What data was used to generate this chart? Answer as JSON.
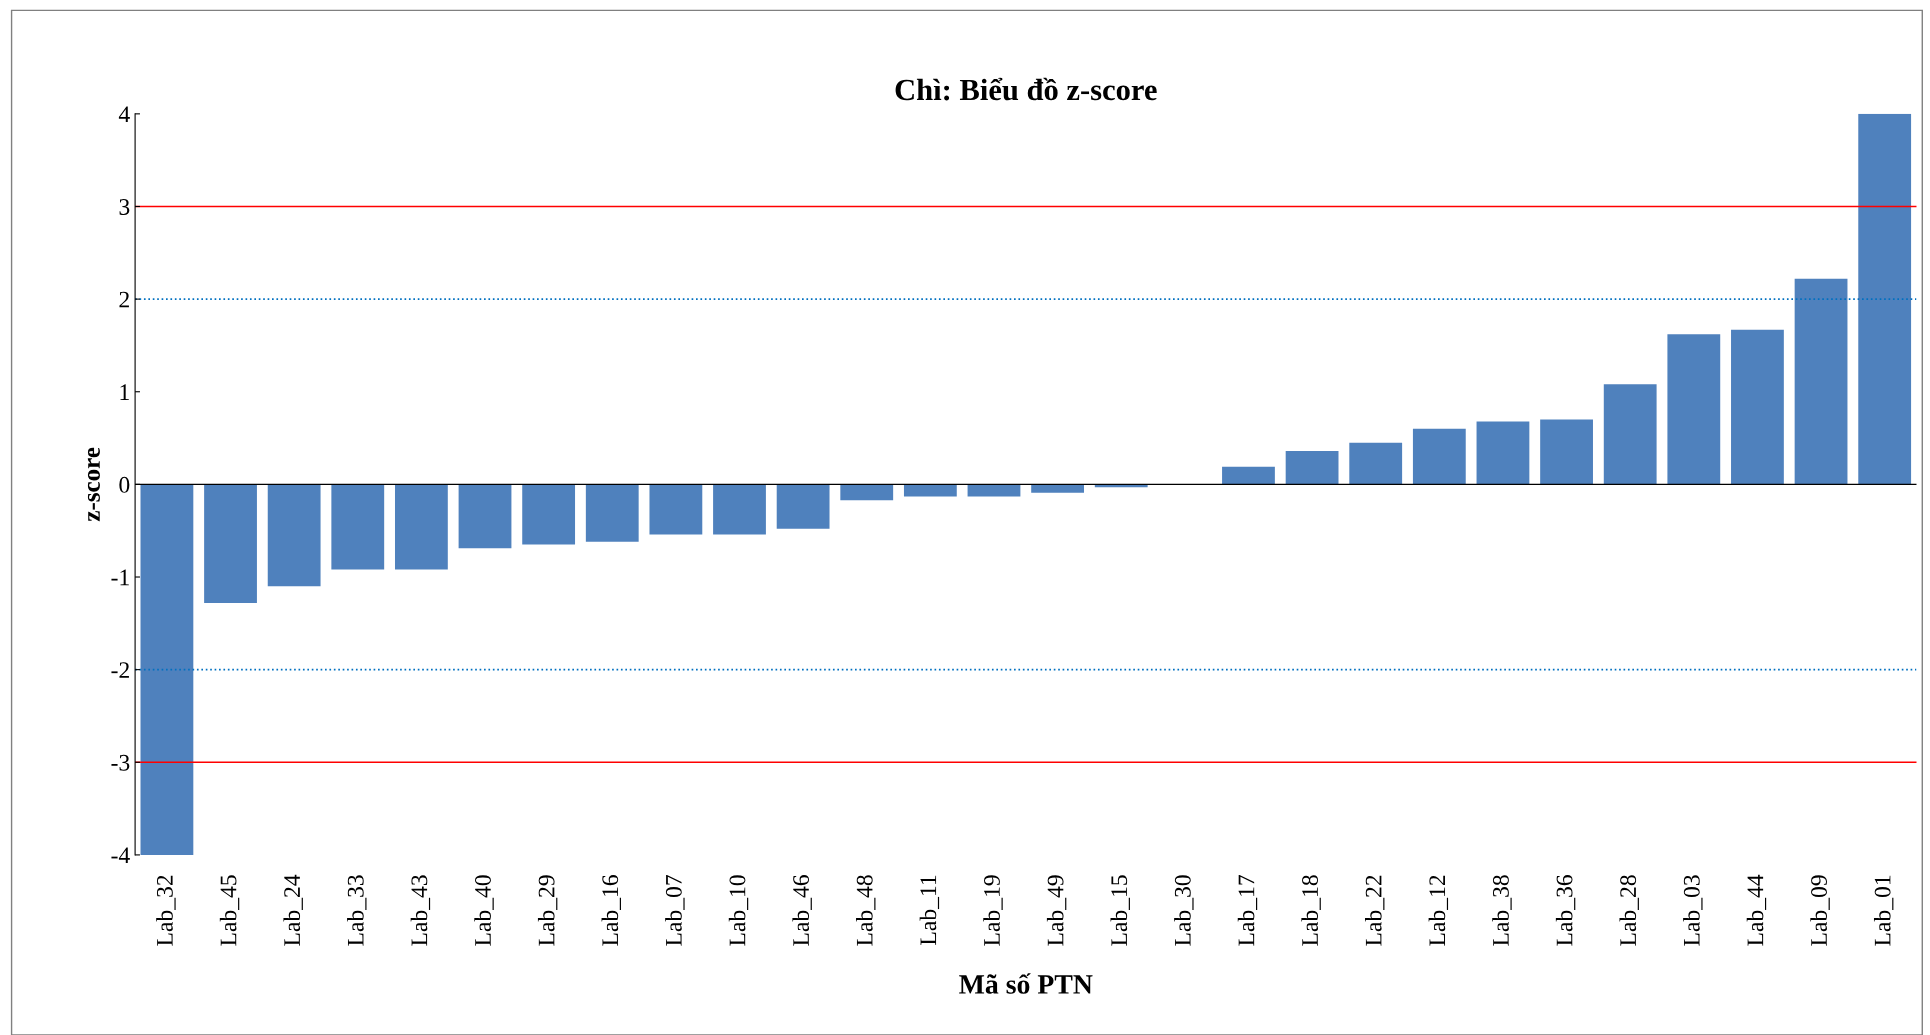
{
  "chart_data": {
    "type": "bar",
    "title": "Chì: Biểu đồ z-score",
    "xlabel": "Mã số PTN",
    "ylabel": "z-score",
    "categories": [
      "Lab_32",
      "Lab_45",
      "Lab_24",
      "Lab_33",
      "Lab_43",
      "Lab_40",
      "Lab_29",
      "Lab_16",
      "Lab_07",
      "Lab_10",
      "Lab_46",
      "Lab_48",
      "Lab_11",
      "Lab_19",
      "Lab_49",
      "Lab_15",
      "Lab_30",
      "Lab_17",
      "Lab_18",
      "Lab_22",
      "Lab_12",
      "Lab_38",
      "Lab_36",
      "Lab_28",
      "Lab_03",
      "Lab_44",
      "Lab_09",
      "Lab_01"
    ],
    "values": [
      -4.0,
      -1.28,
      -1.1,
      -0.92,
      -0.92,
      -0.69,
      -0.65,
      -0.62,
      -0.54,
      -0.54,
      -0.48,
      -0.17,
      -0.13,
      -0.13,
      -0.09,
      -0.03,
      0,
      0.19,
      0.36,
      0.45,
      0.6,
      0.68,
      0.7,
      1.08,
      1.62,
      1.67,
      2.22,
      4.0
    ],
    "color": "#4f81bd",
    "ylim": [
      -4,
      4
    ],
    "yticks": [
      -4,
      -3,
      -2,
      -1,
      0,
      1,
      2,
      3,
      4
    ],
    "grid": false,
    "legend": false,
    "ref_lines": [
      {
        "axis": "y",
        "value": 3,
        "color": "#ff0000",
        "line_style": "solid"
      },
      {
        "axis": "y",
        "value": -3,
        "color": "#ff0000",
        "line_style": "solid"
      },
      {
        "axis": "y",
        "value": 2,
        "color": "#0070c0",
        "line_style": "dotted"
      },
      {
        "axis": "y",
        "value": -2,
        "color": "#0070c0",
        "line_style": "dotted"
      }
    ]
  }
}
